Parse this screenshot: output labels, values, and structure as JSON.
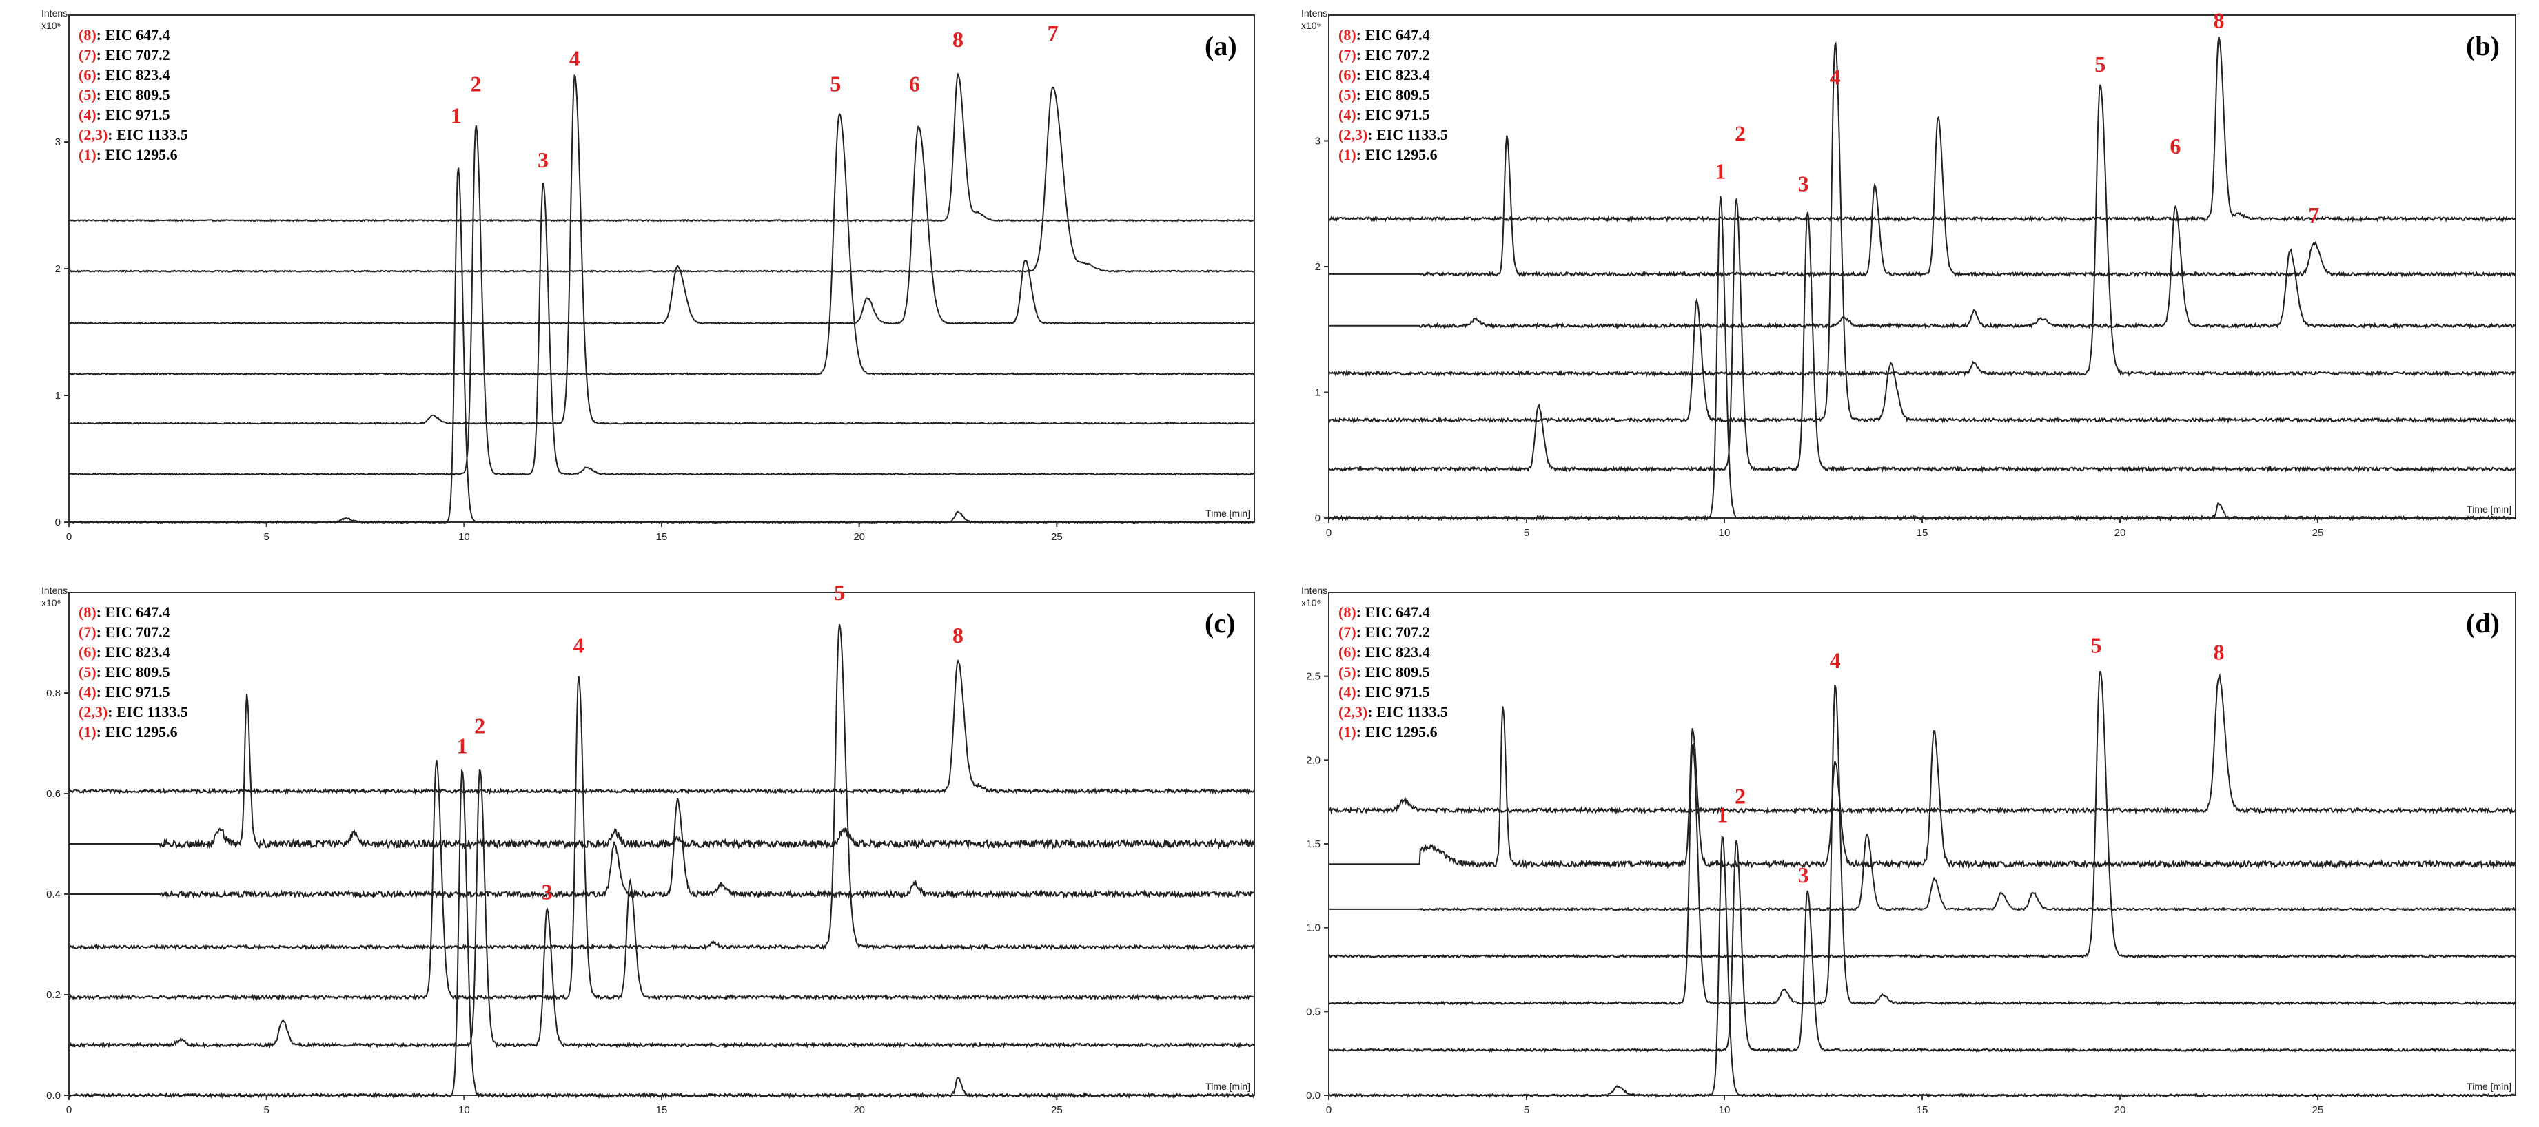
{
  "figure": {
    "colors": {
      "trace": "#222222",
      "axis": "#333333",
      "highlight": "#e02020",
      "text": "#000000"
    },
    "legend_entries": [
      {
        "code": "(8)",
        "label": ": EIC  647.4"
      },
      {
        "code": "(7)",
        "label": ": EIC  707.2"
      },
      {
        "code": "(6)",
        "label": ": EIC  823.4"
      },
      {
        "code": "(5)",
        "label": ": EIC  809.5"
      },
      {
        "code": "(4)",
        "label": ": EIC  971.5"
      },
      {
        "code": "(2,3)",
        "label": ": EIC  1133.5"
      },
      {
        "code": "(1)",
        "label": ": EIC  1295.6"
      }
    ],
    "y_label_top": "Intens.",
    "y_label_unit": "x10⁶",
    "x_label": "Time [min]"
  },
  "chart_data": [
    {
      "type": "line",
      "panel_label": "(a)",
      "title": "(a)",
      "xlabel": "Time [min]",
      "ylabel": "Intens. x10⁶",
      "xlim": [
        0,
        30
      ],
      "ylim": [
        0,
        4
      ],
      "x_ticks": [
        "0",
        "5",
        "10",
        "15",
        "20",
        "25"
      ],
      "y_ticks": [
        {
          "v": 0,
          "label": "0"
        },
        {
          "v": 1,
          "label": "1"
        },
        {
          "v": 2,
          "label": "2"
        },
        {
          "v": 3,
          "label": "3"
        }
      ],
      "noise": 0.005,
      "traces": [
        {
          "name": "(8): EIC 647.4",
          "baseline": 2.38,
          "peaks": [
            [
              22.5,
              1.15,
              0.1
            ],
            [
              23.0,
              0.06,
              0.1
            ]
          ]
        },
        {
          "name": "(7): EIC 707.2",
          "baseline": 1.98,
          "peaks": [
            [
              24.9,
              1.45,
              0.16
            ],
            [
              25.7,
              0.06,
              0.15
            ]
          ]
        },
        {
          "name": "(6): EIC 823.4",
          "baseline": 1.57,
          "peaks": [
            [
              15.4,
              0.45,
              0.12
            ],
            [
              20.2,
              0.2,
              0.1
            ],
            [
              21.5,
              1.55,
              0.14
            ],
            [
              24.2,
              0.5,
              0.1
            ]
          ]
        },
        {
          "name": "(5): EIC 809.5",
          "baseline": 1.17,
          "peaks": [
            [
              19.5,
              2.05,
              0.14
            ]
          ]
        },
        {
          "name": "(4): EIC 971.5",
          "baseline": 0.78,
          "peaks": [
            [
              9.2,
              0.06,
              0.1
            ],
            [
              12.8,
              2.75,
              0.1
            ]
          ]
        },
        {
          "name": "(2,3): EIC 1133.5",
          "baseline": 0.38,
          "peaks": [
            [
              10.3,
              2.75,
              0.09
            ],
            [
              12.0,
              2.3,
              0.09
            ],
            [
              13.1,
              0.05,
              0.1
            ]
          ]
        },
        {
          "name": "(1): EIC 1295.6",
          "baseline": 0.0,
          "peaks": [
            [
              7.0,
              0.03,
              0.1
            ],
            [
              9.85,
              2.8,
              0.08
            ],
            [
              22.5,
              0.08,
              0.08
            ]
          ]
        }
      ],
      "peak_labels": [
        {
          "label": "1",
          "x": 9.8,
          "y": 3.15
        },
        {
          "label": "2",
          "x": 10.3,
          "y": 3.4
        },
        {
          "label": "3",
          "x": 12.0,
          "y": 2.8
        },
        {
          "label": "4",
          "x": 12.8,
          "y": 3.6
        },
        {
          "label": "5",
          "x": 19.4,
          "y": 3.4
        },
        {
          "label": "6",
          "x": 21.4,
          "y": 3.4
        },
        {
          "label": "8",
          "x": 22.5,
          "y": 3.75
        },
        {
          "label": "7",
          "x": 24.9,
          "y": 3.8
        }
      ]
    },
    {
      "type": "line",
      "panel_label": "(b)",
      "title": "(b)",
      "xlabel": "Time [min]",
      "ylabel": "Intens. x10⁶",
      "xlim": [
        0,
        30
      ],
      "ylim": [
        0,
        4
      ],
      "x_ticks": [
        "0",
        "5",
        "10",
        "15",
        "20",
        "25"
      ],
      "y_ticks": [
        {
          "v": 0,
          "label": "0"
        },
        {
          "v": 1,
          "label": "1"
        },
        {
          "v": 2,
          "label": "2"
        },
        {
          "v": 3,
          "label": "3"
        }
      ],
      "noise": 0.012,
      "traces": [
        {
          "name": "(8): EIC 647.4",
          "baseline": 2.38,
          "peaks": [
            [
              22.5,
              1.45,
              0.08
            ],
            [
              23.0,
              0.04,
              0.08
            ]
          ]
        },
        {
          "name": "(7): EIC 707.2",
          "baseline": 1.94,
          "peaks": [
            [
              4.5,
              1.1,
              0.06
            ],
            [
              13.8,
              0.7,
              0.07
            ],
            [
              15.4,
              1.25,
              0.08
            ],
            [
              24.9,
              0.25,
              0.1
            ]
          ]
        },
        {
          "name": "(6): EIC 823.4",
          "baseline": 1.53,
          "peaks": [
            [
              3.7,
              0.05,
              0.08
            ],
            [
              13.0,
              0.06,
              0.1
            ],
            [
              16.3,
              0.12,
              0.06
            ],
            [
              18.0,
              0.06,
              0.1
            ],
            [
              21.4,
              0.95,
              0.09
            ],
            [
              24.3,
              0.6,
              0.1
            ]
          ]
        },
        {
          "name": "(5): EIC 809.5",
          "baseline": 1.15,
          "peaks": [
            [
              16.3,
              0.09,
              0.06
            ],
            [
              19.5,
              2.3,
              0.1
            ]
          ]
        },
        {
          "name": "(4): EIC 971.5",
          "baseline": 0.78,
          "peaks": [
            [
              9.3,
              0.95,
              0.08
            ],
            [
              12.8,
              3.0,
              0.09
            ],
            [
              14.2,
              0.45,
              0.1
            ]
          ]
        },
        {
          "name": "(2,3): EIC 1133.5",
          "baseline": 0.39,
          "peaks": [
            [
              5.3,
              0.5,
              0.08
            ],
            [
              10.3,
              2.15,
              0.08
            ],
            [
              12.1,
              2.05,
              0.08
            ]
          ]
        },
        {
          "name": "(1): EIC 1295.6",
          "baseline": 0.0,
          "peaks": [
            [
              9.9,
              2.55,
              0.08
            ],
            [
              22.5,
              0.12,
              0.06
            ]
          ]
        }
      ],
      "peak_labels": [
        {
          "label": "1",
          "x": 9.9,
          "y": 2.7
        },
        {
          "label": "2",
          "x": 10.4,
          "y": 3.0
        },
        {
          "label": "3",
          "x": 12.0,
          "y": 2.6
        },
        {
          "label": "4",
          "x": 12.8,
          "y": 3.45
        },
        {
          "label": "5",
          "x": 19.5,
          "y": 3.55
        },
        {
          "label": "6",
          "x": 21.4,
          "y": 2.9
        },
        {
          "label": "8",
          "x": 22.5,
          "y": 3.9
        },
        {
          "label": "7",
          "x": 24.9,
          "y": 2.35
        }
      ]
    },
    {
      "type": "line",
      "panel_label": "(c)",
      "title": "(c)",
      "xlabel": "Time [min]",
      "ylabel": "Intens. x10⁶",
      "xlim": [
        0,
        30
      ],
      "ylim": [
        0,
        1.0
      ],
      "x_ticks": [
        "0",
        "5",
        "10",
        "15",
        "20",
        "25"
      ],
      "y_ticks": [
        {
          "v": 0,
          "label": "0.0"
        },
        {
          "v": 0.2,
          "label": "0.2"
        },
        {
          "v": 0.4,
          "label": "0.4"
        },
        {
          "v": 0.6,
          "label": "0.6"
        },
        {
          "v": 0.8,
          "label": "0.8"
        }
      ],
      "noise": 0.003,
      "traces": [
        {
          "name": "(8): EIC 647.4",
          "baseline": 0.605,
          "peaks": [
            [
              22.5,
              0.26,
              0.1
            ],
            [
              23.0,
              0.01,
              0.1
            ]
          ]
        },
        {
          "name": "(7): EIC 707.2",
          "baseline": 0.5,
          "peaks": [
            [
              3.8,
              0.03,
              0.08
            ],
            [
              4.5,
              0.3,
              0.05
            ],
            [
              7.2,
              0.02,
              0.08
            ],
            [
              13.8,
              0.025,
              0.08
            ],
            [
              15.4,
              0.01,
              0.08
            ],
            [
              19.6,
              0.03,
              0.08
            ]
          ],
          "extra_noise": 0.004
        },
        {
          "name": "(6): EIC 823.4",
          "baseline": 0.4,
          "peaks": [
            [
              13.8,
              0.1,
              0.08
            ],
            [
              15.4,
              0.19,
              0.08
            ],
            [
              16.5,
              0.02,
              0.08
            ],
            [
              21.4,
              0.02,
              0.08
            ]
          ],
          "extra_noise": 0.002
        },
        {
          "name": "(5): EIC 809.5",
          "baseline": 0.295,
          "peaks": [
            [
              16.3,
              0.01,
              0.06
            ],
            [
              19.5,
              0.64,
              0.1
            ]
          ]
        },
        {
          "name": "(4): EIC 971.5",
          "baseline": 0.195,
          "peaks": [
            [
              9.3,
              0.47,
              0.08
            ],
            [
              12.9,
              0.64,
              0.08
            ],
            [
              14.2,
              0.23,
              0.08
            ]
          ]
        },
        {
          "name": "(2,3): EIC 1133.5",
          "baseline": 0.1,
          "peaks": [
            [
              2.8,
              0.01,
              0.08
            ],
            [
              5.4,
              0.05,
              0.08
            ],
            [
              10.4,
              0.55,
              0.08
            ],
            [
              12.1,
              0.27,
              0.08
            ]
          ]
        },
        {
          "name": "(1): EIC 1295.6",
          "baseline": 0.0,
          "peaks": [
            [
              9.95,
              0.65,
              0.08
            ],
            [
              22.5,
              0.035,
              0.06
            ]
          ]
        }
      ],
      "peak_labels": [
        {
          "label": "1",
          "x": 9.95,
          "y": 0.68
        },
        {
          "label": "2",
          "x": 10.4,
          "y": 0.72
        },
        {
          "label": "3",
          "x": 12.1,
          "y": 0.39
        },
        {
          "label": "4",
          "x": 12.9,
          "y": 0.88
        },
        {
          "label": "5",
          "x": 19.5,
          "y": 0.985
        },
        {
          "label": "8",
          "x": 22.5,
          "y": 0.9
        }
      ]
    },
    {
      "type": "line",
      "panel_label": "(d)",
      "title": "(d)",
      "xlabel": "Time [min]",
      "ylabel": "Intens. x10⁶",
      "xlim": [
        0,
        30
      ],
      "ylim": [
        0,
        3.0
      ],
      "x_ticks": [
        "0",
        "5",
        "10",
        "15",
        "20",
        "25"
      ],
      "y_ticks": [
        {
          "v": 0,
          "label": "0.0"
        },
        {
          "v": 0.5,
          "label": "0.5"
        },
        {
          "v": 1.0,
          "label": "1.0"
        },
        {
          "v": 1.5,
          "label": "1.5"
        },
        {
          "v": 2.0,
          "label": "2.0"
        },
        {
          "v": 2.5,
          "label": "2.5"
        }
      ],
      "noise": 0.006,
      "traces": [
        {
          "name": "(8): EIC 647.4",
          "baseline": 1.7,
          "peaks": [
            [
              1.9,
              0.06,
              0.1
            ],
            [
              22.5,
              0.8,
              0.1
            ]
          ],
          "extra_noise": 0.006
        },
        {
          "name": "(7): EIC 707.2",
          "baseline": 1.38,
          "peaks": [
            [
              2.5,
              0.1,
              0.25
            ],
            [
              4.4,
              0.95,
              0.05
            ],
            [
              9.2,
              0.8,
              0.07
            ],
            [
              12.8,
              0.6,
              0.08
            ],
            [
              15.3,
              0.8,
              0.08
            ]
          ],
          "extra_noise": 0.01
        },
        {
          "name": "(6): EIC 823.4",
          "baseline": 1.11,
          "peaks": [
            [
              13.6,
              0.45,
              0.08
            ],
            [
              15.3,
              0.18,
              0.08
            ],
            [
              17.0,
              0.1,
              0.08
            ],
            [
              17.8,
              0.1,
              0.08
            ]
          ]
        },
        {
          "name": "(5): EIC 809.5",
          "baseline": 0.83,
          "peaks": [
            [
              19.5,
              1.7,
              0.1
            ]
          ]
        },
        {
          "name": "(4): EIC 971.5",
          "baseline": 0.55,
          "peaks": [
            [
              9.2,
              1.55,
              0.08
            ],
            [
              11.5,
              0.08,
              0.08
            ],
            [
              12.8,
              1.9,
              0.08
            ],
            [
              14.0,
              0.05,
              0.08
            ]
          ]
        },
        {
          "name": "(2,3): EIC 1133.5",
          "baseline": 0.27,
          "peaks": [
            [
              10.3,
              1.25,
              0.08
            ],
            [
              12.1,
              0.95,
              0.08
            ]
          ]
        },
        {
          "name": "(1): EIC 1295.6",
          "baseline": 0.0,
          "peaks": [
            [
              7.3,
              0.05,
              0.1
            ],
            [
              9.95,
              1.55,
              0.08
            ]
          ]
        }
      ],
      "peak_labels": [
        {
          "label": "1",
          "x": 9.95,
          "y": 1.63
        },
        {
          "label": "2",
          "x": 10.4,
          "y": 1.74
        },
        {
          "label": "3",
          "x": 12.0,
          "y": 1.27
        },
        {
          "label": "4",
          "x": 12.8,
          "y": 2.55
        },
        {
          "label": "5",
          "x": 19.4,
          "y": 2.64
        },
        {
          "label": "8",
          "x": 22.5,
          "y": 2.6
        }
      ]
    }
  ]
}
